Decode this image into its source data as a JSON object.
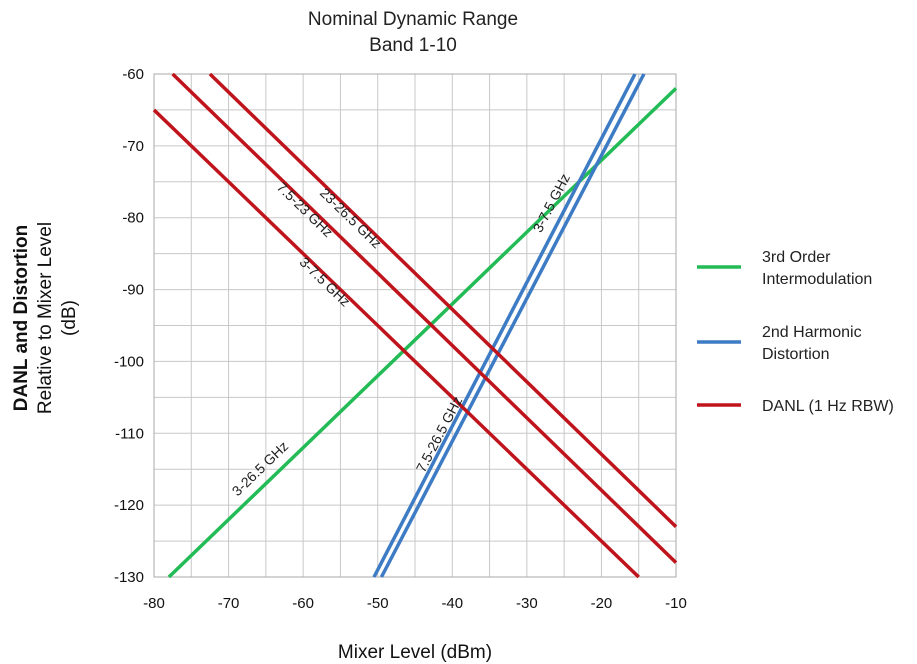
{
  "chart_data": {
    "type": "line",
    "title": [
      "Nominal Dynamic Range",
      "Band 1-10"
    ],
    "xlabel": "Mixer Level (dBm)",
    "ylabel": [
      "DANL and Distortion",
      "Relative to Mixer Level",
      "(dB)"
    ],
    "xlim": [
      -80,
      -10
    ],
    "ylim": [
      -130,
      -60
    ],
    "xticks": [
      -80,
      -70,
      -60,
      -50,
      -40,
      -30,
      -20,
      -10
    ],
    "yticks": [
      -60,
      -70,
      -80,
      -90,
      -100,
      -110,
      -120,
      -130
    ],
    "grid": true,
    "legend_position": "right",
    "legend": [
      {
        "label": [
          "3rd Order",
          "Intermodulation"
        ],
        "color": "#22bb55"
      },
      {
        "label": [
          "2nd Harmonic",
          "Distortion"
        ],
        "color": "#3d7cc4"
      },
      {
        "label": [
          "DANL (1 Hz RBW)"
        ],
        "color": "#c0141c"
      }
    ],
    "series": [
      {
        "group": "3rd Order Intermodulation",
        "label": "3-26.5 GHz",
        "color": "#22bb55",
        "x": [
          -78,
          -10
        ],
        "y": [
          -130,
          -62
        ]
      },
      {
        "group": "2nd Harmonic Distortion",
        "label": "3-7.5 GHz",
        "color": "#3d7cc4",
        "x": [
          -50.5,
          -15.5
        ],
        "y": [
          -130,
          -60
        ]
      },
      {
        "group": "2nd Harmonic Distortion",
        "label": "7.5-26.5 GHz",
        "color": "#3d7cc4",
        "x": [
          -49.5,
          -14.3
        ],
        "y": [
          -130,
          -60
        ]
      },
      {
        "group": "DANL (1 Hz RBW)",
        "label": "3-7.5 GHz",
        "color": "#c0141c",
        "x": [
          -80,
          -15
        ],
        "y": [
          -65,
          -130
        ]
      },
      {
        "group": "DANL (1 Hz RBW)",
        "label": "7.5-23 GHz",
        "color": "#c0141c",
        "x": [
          -77.5,
          -10
        ],
        "y": [
          -60,
          -128
        ]
      },
      {
        "group": "DANL (1 Hz RBW)",
        "label": "23-26.5 GHz",
        "color": "#c0141c",
        "x": [
          -72.5,
          -10
        ],
        "y": [
          -60,
          -123
        ]
      }
    ]
  }
}
